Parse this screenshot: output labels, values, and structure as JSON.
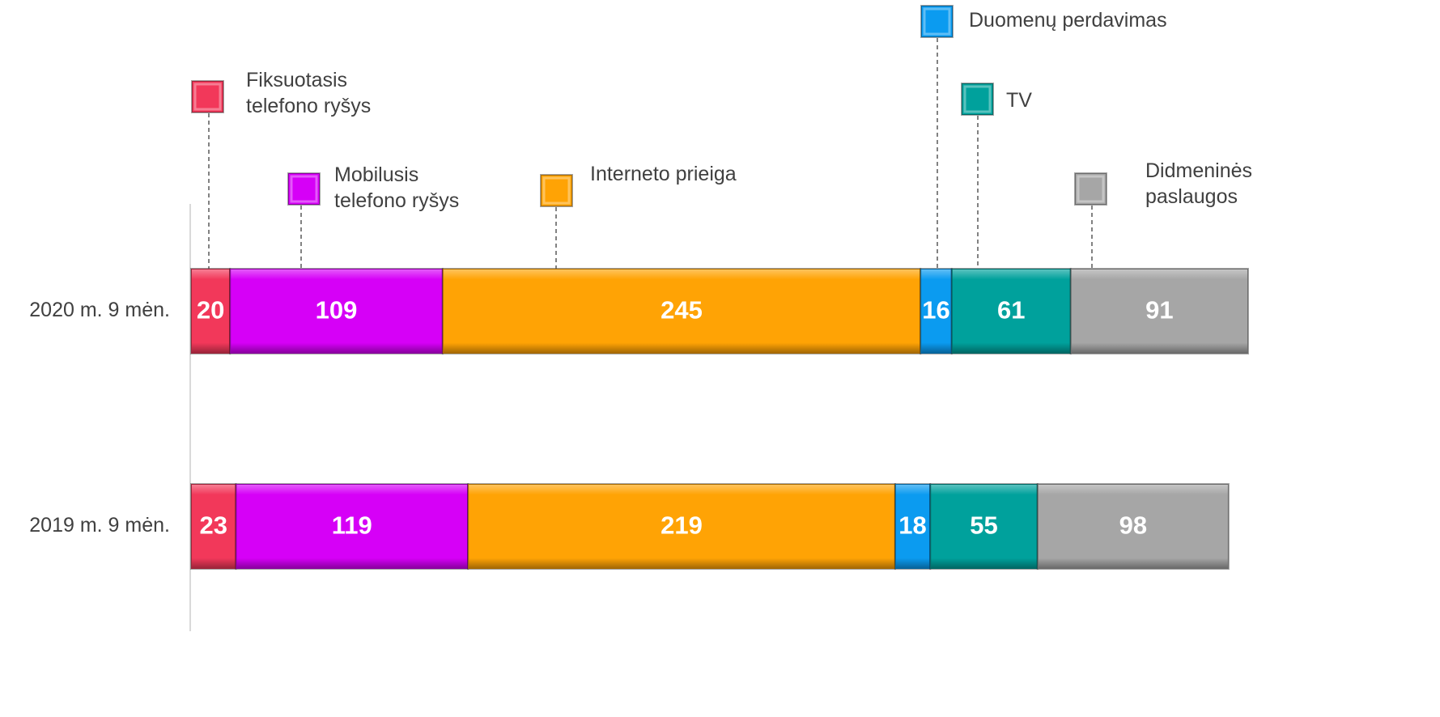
{
  "chart_data": {
    "type": "stacked_bar_horizontal",
    "categories": [
      "2020 m. 9 mėn.",
      "2019 m. 9 mėn."
    ],
    "series": [
      {
        "name": "Fiksuotasis telefono ryšys",
        "color": "#f2385a",
        "values": [
          20,
          23
        ]
      },
      {
        "name": "Mobilusis telefono ryšys",
        "color": "#d600f7",
        "values": [
          109,
          119
        ]
      },
      {
        "name": "Interneto prieiga",
        "color": "#ffa305",
        "values": [
          245,
          219
        ]
      },
      {
        "name": "Duomenų perdavimas",
        "color": "#0b9bf0",
        "values": [
          16,
          18
        ]
      },
      {
        "name": "TV",
        "color": "#00a19c",
        "values": [
          61,
          55
        ]
      },
      {
        "name": "Didmeninės paslaugos",
        "color": "#a6a6a6",
        "values": [
          91,
          98
        ]
      }
    ]
  }
}
